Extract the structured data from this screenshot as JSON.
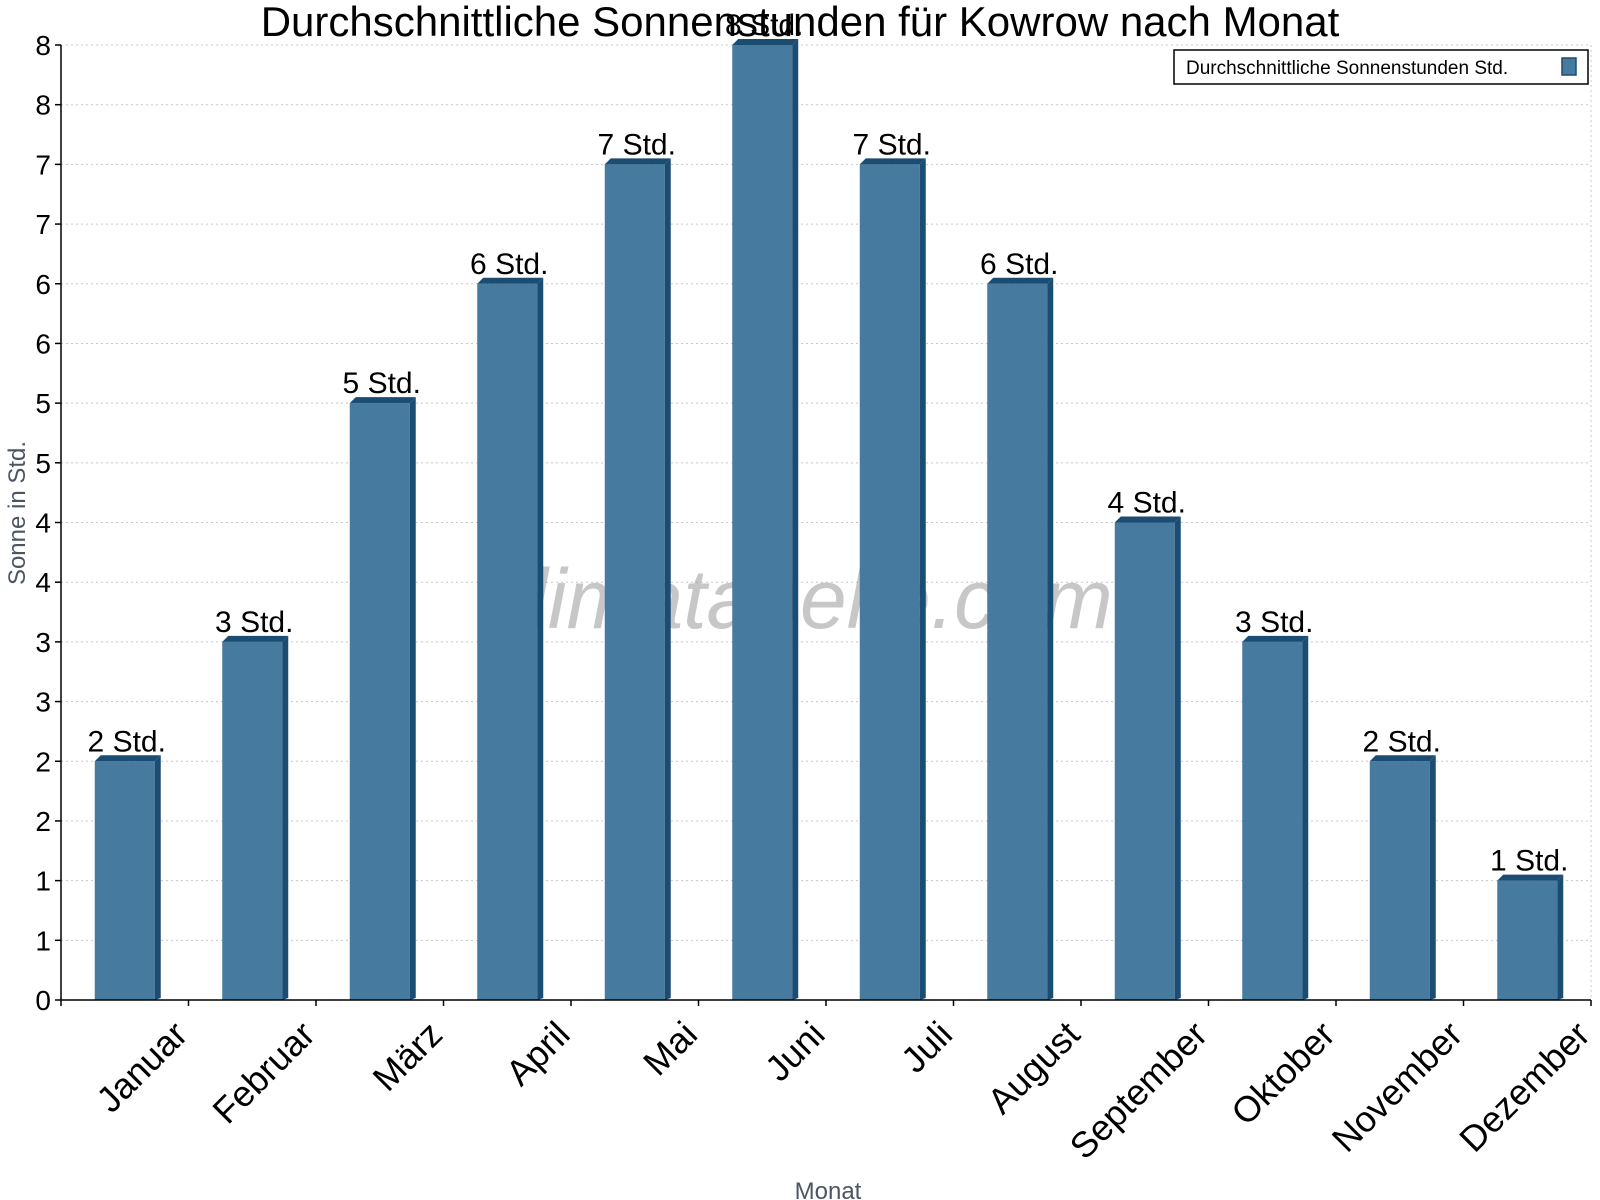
{
  "chart_data": {
    "type": "bar",
    "title": "Durchschnittliche Sonnenstunden für Kowrow nach Monat",
    "xlabel": "Monat",
    "ylabel": "Sonne in Std.",
    "categories": [
      "Januar",
      "Februar",
      "März",
      "April",
      "Mai",
      "Juni",
      "Juli",
      "August",
      "September",
      "Oktober",
      "November",
      "Dezember"
    ],
    "series": [
      {
        "name": "Durchschnittliche Sonnenstunden Std.",
        "values": [
          2,
          3,
          5,
          6,
          7,
          8,
          7,
          6,
          4,
          3,
          2,
          1
        ],
        "data_labels": [
          "2 Std.",
          "3 Std.",
          "5 Std.",
          "6 Std.",
          "7 Std.",
          "8 Std.",
          "7 Std.",
          "6 Std.",
          "4 Std.",
          "3 Std.",
          "2 Std.",
          "1 Std."
        ],
        "color": "#467a9e",
        "edge_color": "#1b4c72"
      }
    ],
    "ylim": [
      0,
      8
    ],
    "yticks": [
      0,
      0.5,
      1,
      1.5,
      2,
      2.5,
      3,
      3.5,
      4,
      4.5,
      5,
      5.5,
      6,
      6.5,
      7,
      7.5,
      8
    ],
    "ytick_labels": [
      "0",
      "1",
      "1",
      "2",
      "2",
      "3",
      "3",
      "4",
      "4",
      "5",
      "5",
      "6",
      "6",
      "7",
      "7",
      "8",
      "8"
    ],
    "grid": true,
    "legend_position": "top-right",
    "watermark": "klimatabelle.com"
  }
}
